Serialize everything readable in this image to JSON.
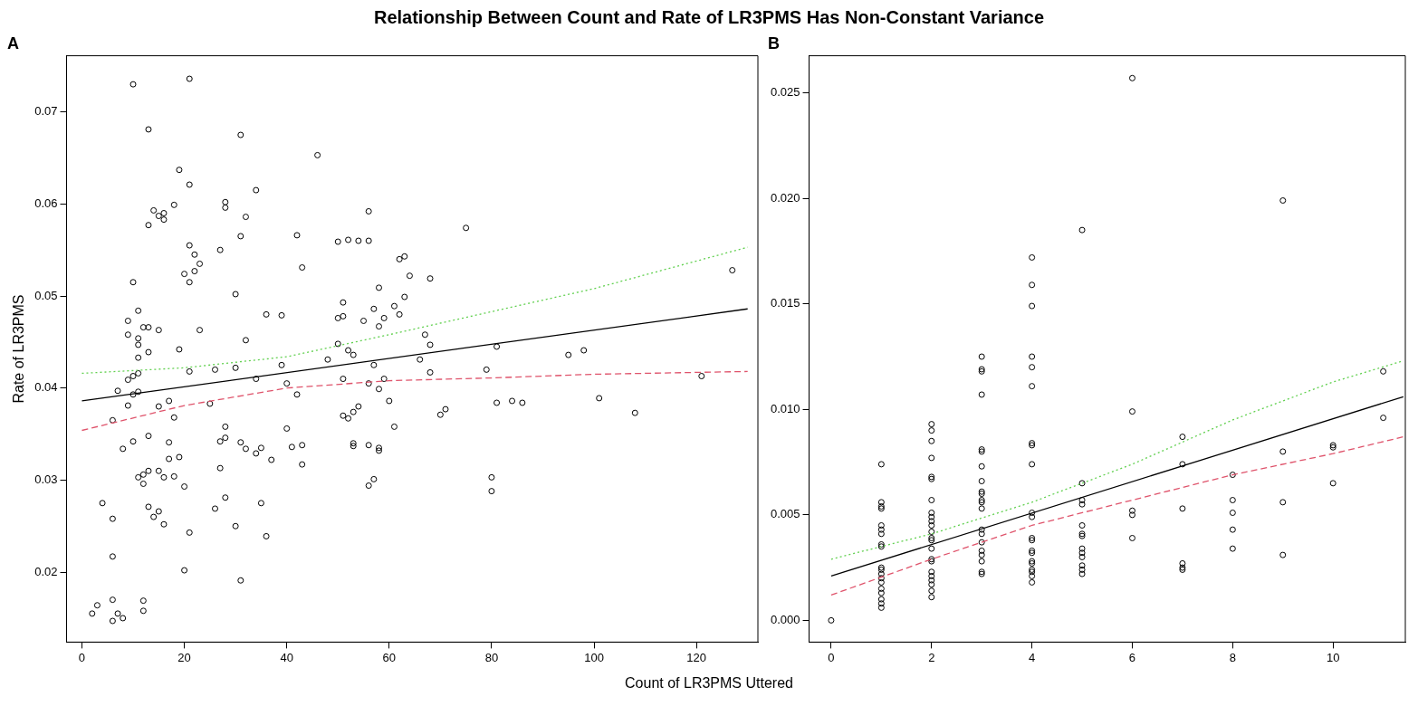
{
  "chart_data": [
    {
      "type": "scatter",
      "title": "Relationship Between Count and Rate of LR3PMS Has Non-Constant Variance",
      "subtitle": "A",
      "xlabel": "Count of LR3PMS Uttered",
      "ylabel": "Rate of LR3PMS",
      "xlim": [
        -3,
        132
      ],
      "ylim": [
        0.0124,
        0.0761
      ],
      "xticks": [
        0,
        20,
        40,
        60,
        80,
        100,
        120
      ],
      "yticks": [
        0.02,
        0.03,
        0.04,
        0.05,
        0.06,
        0.07
      ],
      "grid": false,
      "series": [
        {
          "type": "scatter",
          "color": "#000000",
          "marker": "circle",
          "x": [
            10,
            21,
            13,
            31,
            46,
            19,
            21,
            34,
            18,
            28,
            28,
            14,
            16,
            15,
            16,
            13,
            32,
            56,
            75,
            31,
            42,
            50,
            52,
            54,
            56,
            21,
            22,
            23,
            27,
            20,
            22,
            21,
            10,
            43,
            62,
            63,
            64,
            68,
            30,
            58,
            63,
            61,
            57,
            62,
            59,
            50,
            51,
            51,
            55,
            58,
            36,
            39,
            11,
            9,
            9,
            12,
            13,
            15,
            23,
            11,
            11,
            11,
            13,
            19,
            32,
            50,
            52,
            53,
            48,
            67,
            68,
            66,
            81,
            95,
            98,
            127,
            39,
            57,
            21,
            26,
            30,
            11,
            10,
            9,
            34,
            51,
            59,
            68,
            79,
            121,
            7,
            11,
            10,
            9,
            17,
            15,
            25,
            40,
            42,
            56,
            58,
            60,
            81,
            84,
            86,
            101,
            108,
            6,
            18,
            51,
            52,
            53,
            54,
            61,
            70,
            71,
            28,
            27,
            28,
            10,
            8,
            13,
            17,
            31,
            32,
            34,
            35,
            40,
            41,
            43,
            53,
            53,
            56,
            58,
            58,
            17,
            19,
            37,
            43,
            27,
            11,
            12,
            13,
            12,
            15,
            16,
            18,
            20,
            57,
            56,
            80,
            80,
            4,
            6,
            13,
            15,
            14,
            16,
            28,
            26,
            35,
            30,
            21,
            36,
            6,
            20,
            31,
            6,
            12,
            3,
            2,
            7,
            8,
            6,
            12
          ],
          "values": [
            0.073,
            0.0736,
            0.0681,
            0.0675,
            0.0653,
            0.0637,
            0.0621,
            0.0615,
            0.0599,
            0.0602,
            0.0596,
            0.0593,
            0.059,
            0.0587,
            0.0583,
            0.0577,
            0.0586,
            0.0592,
            0.0574,
            0.0565,
            0.0566,
            0.0559,
            0.0561,
            0.056,
            0.056,
            0.0555,
            0.0545,
            0.0535,
            0.055,
            0.0524,
            0.0527,
            0.0515,
            0.0515,
            0.0531,
            0.054,
            0.0543,
            0.0522,
            0.0519,
            0.0502,
            0.0509,
            0.0499,
            0.0489,
            0.0486,
            0.048,
            0.0476,
            0.0476,
            0.0478,
            0.0493,
            0.0473,
            0.0467,
            0.048,
            0.0479,
            0.0484,
            0.0473,
            0.0458,
            0.0466,
            0.0466,
            0.0463,
            0.0463,
            0.0454,
            0.0447,
            0.0433,
            0.0439,
            0.0442,
            0.0452,
            0.0448,
            0.0441,
            0.0436,
            0.0431,
            0.0458,
            0.0447,
            0.0431,
            0.0445,
            0.0436,
            0.0441,
            0.0528,
            0.0425,
            0.0425,
            0.0418,
            0.042,
            0.0422,
            0.0416,
            0.0413,
            0.0409,
            0.041,
            0.041,
            0.041,
            0.0417,
            0.042,
            0.0413,
            0.0397,
            0.0396,
            0.0393,
            0.0381,
            0.0386,
            0.038,
            0.0383,
            0.0405,
            0.0393,
            0.0405,
            0.0399,
            0.0386,
            0.0384,
            0.0386,
            0.0384,
            0.0389,
            0.0373,
            0.0365,
            0.0368,
            0.037,
            0.0367,
            0.0374,
            0.038,
            0.0358,
            0.0371,
            0.0377,
            0.0358,
            0.0342,
            0.0346,
            0.0342,
            0.0334,
            0.0348,
            0.0341,
            0.0341,
            0.0334,
            0.0329,
            0.0335,
            0.0356,
            0.0336,
            0.0338,
            0.034,
            0.0337,
            0.0338,
            0.0335,
            0.0332,
            0.0323,
            0.0325,
            0.0322,
            0.0317,
            0.0313,
            0.0303,
            0.0306,
            0.031,
            0.0296,
            0.031,
            0.0303,
            0.0304,
            0.0293,
            0.0301,
            0.0294,
            0.0303,
            0.0288,
            0.0275,
            0.0258,
            0.0271,
            0.0266,
            0.026,
            0.0252,
            0.0281,
            0.0269,
            0.0275,
            0.025,
            0.0243,
            0.0239,
            0.0217,
            0.0202,
            0.0191,
            0.017,
            0.0169,
            0.0164,
            0.0155,
            0.0155,
            0.015,
            0.0147,
            0.0158
          ]
        },
        {
          "type": "line",
          "color": "#000000",
          "line_style": "solid",
          "marker": "none",
          "x": [
            0,
            130
          ],
          "values": [
            0.0386,
            0.0486
          ]
        },
        {
          "type": "line",
          "color": "#61d04f",
          "line_style": "dotted",
          "marker": "none",
          "x": [
            0,
            20,
            40,
            60,
            80,
            100,
            130
          ],
          "values": [
            0.0416,
            0.0422,
            0.0434,
            0.0458,
            0.0483,
            0.0508,
            0.0553
          ]
        },
        {
          "type": "line",
          "color": "#df536b",
          "line_style": "dashed",
          "marker": "none",
          "x": [
            0,
            20,
            40,
            60,
            80,
            100,
            130
          ],
          "values": [
            0.0354,
            0.0381,
            0.04,
            0.0408,
            0.0411,
            0.0415,
            0.0418
          ]
        }
      ]
    },
    {
      "type": "scatter",
      "subtitle": "B",
      "xlim": [
        -0.44,
        11.44
      ],
      "ylim": [
        -0.00103,
        0.02676
      ],
      "xticks": [
        0,
        2,
        4,
        6,
        8,
        10
      ],
      "yticks": [
        {
          "value": 0,
          "label": "0.000"
        },
        {
          "value": 0.005,
          "label": "0.005"
        },
        {
          "value": 0.01,
          "label": "0.010"
        },
        {
          "value": 0.015,
          "label": "0.015"
        },
        {
          "value": 0.02,
          "label": "0.020"
        },
        {
          "value": 0.025,
          "label": "0.025"
        }
      ],
      "grid": false,
      "series": [
        {
          "type": "scatter",
          "color": "#000000",
          "marker": "circle",
          "x": [
            0,
            1,
            1,
            1,
            1,
            1,
            1,
            1,
            1,
            1,
            1,
            1,
            1,
            1,
            1,
            1,
            1,
            1,
            1,
            1,
            2,
            2,
            2,
            2,
            2,
            2,
            2,
            2,
            2,
            2,
            2,
            2,
            2,
            2,
            2,
            2,
            2,
            2,
            2,
            2,
            2,
            2,
            2,
            3,
            3,
            3,
            3,
            3,
            3,
            3,
            3,
            3,
            3,
            3,
            3,
            3,
            3,
            3,
            3,
            3,
            3,
            3,
            3,
            3,
            4,
            4,
            4,
            4,
            4,
            4,
            4,
            4,
            4,
            4,
            4,
            4,
            4,
            4,
            4,
            4,
            4,
            4,
            4,
            4,
            4,
            5,
            5,
            5,
            5,
            5,
            5,
            5,
            5,
            5,
            5,
            5,
            5,
            5,
            6,
            6,
            6,
            6,
            6,
            7,
            7,
            7,
            7,
            7,
            7,
            8,
            8,
            8,
            8,
            8,
            9,
            9,
            9,
            9,
            10,
            10,
            10,
            11,
            11
          ],
          "values": [
            0,
            0.0074,
            0.0056,
            0.0054,
            0.0053,
            0.0045,
            0.0043,
            0.0041,
            0.0036,
            0.0035,
            0.0025,
            0.0024,
            0.0022,
            0.002,
            0.0018,
            0.0015,
            0.0013,
            0.001,
            0.0008,
            0.0006,
            0.0093,
            0.009,
            0.0085,
            0.0077,
            0.0068,
            0.0067,
            0.0057,
            0.0051,
            0.0049,
            0.0047,
            0.0045,
            0.0042,
            0.0039,
            0.0038,
            0.0034,
            0.0029,
            0.0028,
            0.0023,
            0.0021,
            0.0019,
            0.0017,
            0.0014,
            0.0011,
            0.0125,
            0.0119,
            0.0118,
            0.0107,
            0.0081,
            0.008,
            0.0073,
            0.0066,
            0.0061,
            0.006,
            0.0057,
            0.0056,
            0.0053,
            0.0043,
            0.0041,
            0.0037,
            0.0033,
            0.0031,
            0.0028,
            0.0023,
            0.0022,
            0.0172,
            0.0159,
            0.0149,
            0.0125,
            0.012,
            0.0111,
            0.0084,
            0.0083,
            0.0074,
            0.0051,
            0.0049,
            0.0039,
            0.0038,
            0.0033,
            0.0032,
            0.0028,
            0.0027,
            0.0024,
            0.0023,
            0.0021,
            0.0018,
            0.0185,
            0.0065,
            0.0057,
            0.0055,
            0.0045,
            0.0041,
            0.004,
            0.0034,
            0.0032,
            0.003,
            0.0026,
            0.0024,
            0.0022,
            0.0257,
            0.0099,
            0.0052,
            0.005,
            0.0039,
            0.0087,
            0.0074,
            0.0053,
            0.0027,
            0.0025,
            0.0024,
            0.0069,
            0.0057,
            0.0051,
            0.0043,
            0.0034,
            0.0199,
            0.008,
            0.0056,
            0.0031,
            0.0083,
            0.0082,
            0.0065,
            0.0118,
            0.0096
          ]
        },
        {
          "type": "line",
          "color": "#000000",
          "line_style": "solid",
          "marker": "none",
          "x": [
            0,
            11.4
          ],
          "values": [
            0.0021,
            0.0106
          ]
        },
        {
          "type": "line",
          "color": "#61d04f",
          "line_style": "dotted",
          "marker": "none",
          "x": [
            0,
            2,
            4,
            6,
            8,
            10,
            11.4
          ],
          "values": [
            0.0029,
            0.0041,
            0.0056,
            0.0074,
            0.0095,
            0.0113,
            0.0123
          ]
        },
        {
          "type": "line",
          "color": "#df536b",
          "line_style": "dashed",
          "marker": "none",
          "x": [
            0,
            2,
            4,
            6,
            8,
            10,
            11.4
          ],
          "values": [
            0.0012,
            0.0029,
            0.0045,
            0.0057,
            0.0069,
            0.0079,
            0.0087
          ]
        }
      ]
    }
  ]
}
